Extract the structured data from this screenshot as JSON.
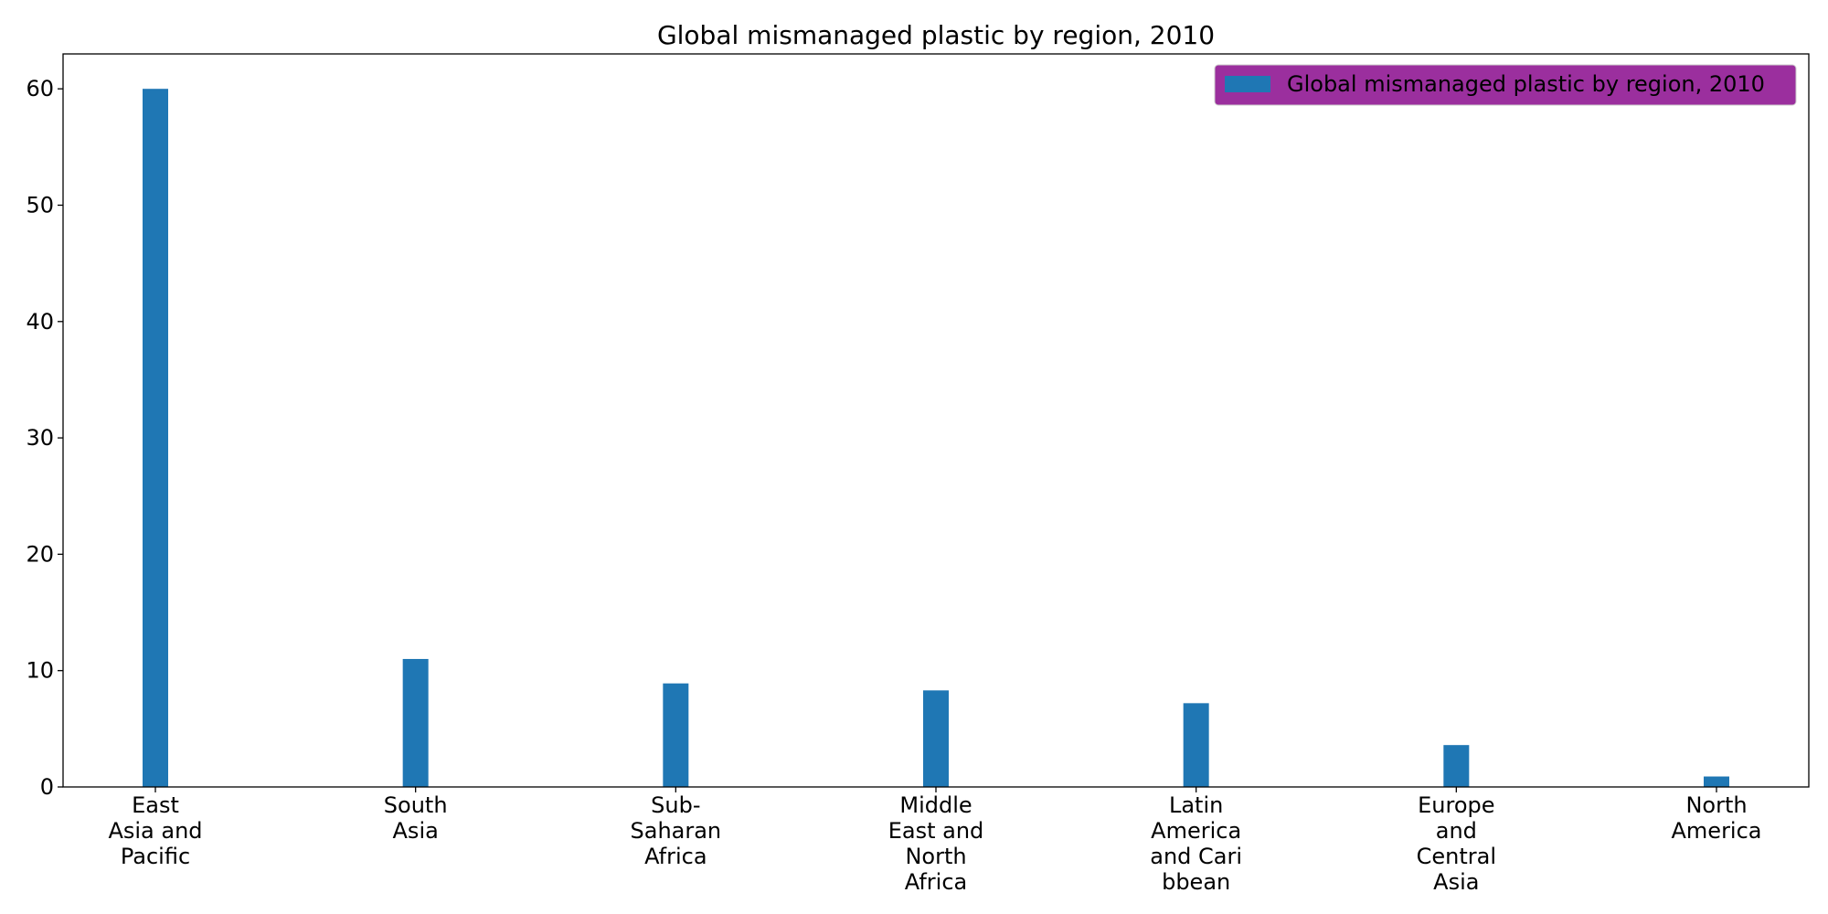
{
  "chart_data": {
    "type": "bar",
    "title": "Global mismanaged plastic by region, 2010",
    "xlabel": "",
    "ylabel": "",
    "categories": [
      [
        "East",
        "Asia and",
        "Pacific"
      ],
      [
        "South",
        "Asia"
      ],
      [
        "Sub-",
        "Saharan",
        "Africa"
      ],
      [
        "Middle",
        "East and",
        "North",
        "Africa"
      ],
      [
        "Latin",
        "America",
        "and Cari",
        "bbean"
      ],
      [
        "Europe",
        "and",
        "Central",
        "Asia"
      ],
      [
        "North",
        "America"
      ]
    ],
    "series": [
      {
        "name": "Global mismanaged plastic by region, 2010",
        "values": [
          60,
          11,
          8.9,
          8.3,
          7.2,
          3.6,
          0.9
        ]
      }
    ],
    "ylim": [
      0,
      63
    ],
    "yticks": [
      0,
      10,
      20,
      30,
      40,
      50,
      60
    ],
    "grid": false,
    "legend": "top-right",
    "colors": {
      "bar": "#1f77b4",
      "legend_background": "#9b2f9e",
      "legend_edge": "#cccccc",
      "axis": "#000000"
    }
  }
}
